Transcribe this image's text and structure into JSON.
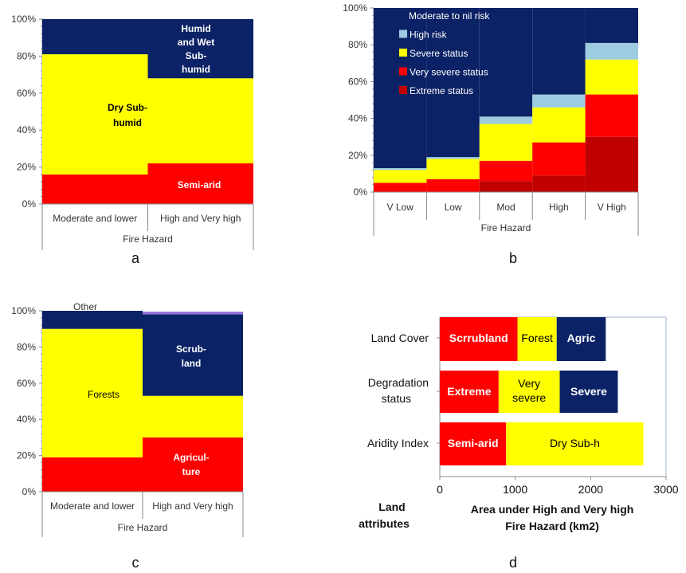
{
  "colors": {
    "navy": "#0B2266",
    "yellow": "#FFFF00",
    "red": "#FF0000",
    "darkred": "#C00000",
    "lightblue": "#9DCBE0",
    "purple": "#9370DB"
  },
  "chart_data": [
    {
      "panel": "a",
      "type": "bar",
      "stacked": true,
      "percent": true,
      "xlabel": "Fire Hazard",
      "ylabel": "",
      "ylim": [
        0,
        100
      ],
      "yticks": [
        "0%",
        "20%",
        "40%",
        "60%",
        "80%",
        "100%"
      ],
      "categories": [
        "Moderate and lower",
        "High and Very high"
      ],
      "series": [
        {
          "name": "Semi-arid",
          "values": [
            16,
            22
          ]
        },
        {
          "name": "Dry Sub-humid",
          "values": [
            65,
            46
          ]
        },
        {
          "name": "Humid and Wet Sub-humid",
          "values": [
            19,
            32
          ]
        }
      ],
      "annotations": {
        "dry": "Dry Sub-",
        "dry2": "humid",
        "semiarid": "Semi-arid",
        "humid1": "Humid",
        "humid2": "and Wet",
        "humid3": "Sub-",
        "humid4": "humid"
      }
    },
    {
      "panel": "b",
      "type": "bar",
      "stacked": true,
      "percent": true,
      "xlabel": "Fire Hazard",
      "ylabel": "",
      "ylim": [
        0,
        100
      ],
      "yticks": [
        "0%",
        "20%",
        "40%",
        "60%",
        "80%",
        "100%"
      ],
      "categories": [
        "V Low",
        "Low",
        "Mod",
        "High",
        "V High"
      ],
      "legend_position": "top-left",
      "series": [
        {
          "name": "Extreme status",
          "values": [
            0,
            0,
            6,
            9,
            30
          ]
        },
        {
          "name": "Very severe status",
          "values": [
            5,
            7,
            11,
            18,
            23
          ]
        },
        {
          "name": "Severe status",
          "values": [
            7,
            11,
            20,
            19,
            19
          ]
        },
        {
          "name": "High risk",
          "values": [
            1,
            1,
            4,
            7,
            9
          ]
        },
        {
          "name": "Moderate to nil risk",
          "values": [
            87,
            81,
            59,
            47,
            19
          ]
        }
      ]
    },
    {
      "panel": "c",
      "type": "bar",
      "stacked": true,
      "percent": true,
      "xlabel": "Fire Hazard",
      "ylabel": "",
      "ylim": [
        0,
        100
      ],
      "yticks": [
        "0%",
        "20%",
        "40%",
        "60%",
        "80%",
        "100%"
      ],
      "categories": [
        "Moderate and lower",
        "High and Very high"
      ],
      "series": [
        {
          "name": "Agriculture",
          "values": [
            19,
            30
          ]
        },
        {
          "name": "Forests",
          "values": [
            71,
            23
          ]
        },
        {
          "name": "Scrubland",
          "values": [
            10,
            45
          ]
        },
        {
          "name": "Other",
          "values": [
            0.5,
            1.5
          ]
        }
      ],
      "annotations": {
        "other": "Other",
        "forests": "Forests",
        "scrub1": "Scrub-",
        "scrub2": "land",
        "agri1": "Agricul-",
        "agri2": "ture"
      }
    },
    {
      "panel": "d",
      "type": "bar",
      "orientation": "horizontal",
      "stacked": true,
      "xlabel1": "Area under High and Very high",
      "xlabel2": "Fire Hazard (km2)",
      "ylabel1": "Land",
      "ylabel2": "attributes",
      "xlim": [
        0,
        3000
      ],
      "xticks": [
        "0",
        "1000",
        "2000",
        "3000"
      ],
      "categories": [
        {
          "label1": "Land Cover",
          "label2": ""
        },
        {
          "label1": "Degradation",
          "label2": "status"
        },
        {
          "label1": "Aridity Index",
          "label2": ""
        }
      ],
      "rows": [
        {
          "segments": [
            {
              "label": "Scrrubland",
              "value": 1030,
              "color": "red"
            },
            {
              "label": "Forest",
              "value": 520,
              "color": "yellow"
            },
            {
              "label": "Agric",
              "value": 650,
              "color": "navy"
            }
          ]
        },
        {
          "segments": [
            {
              "label": "Extreme",
              "value": 780,
              "color": "red"
            },
            {
              "label": "Very",
              "label2": "severe",
              "value": 810,
              "color": "yellow"
            },
            {
              "label": "Severe",
              "value": 770,
              "color": "navy"
            }
          ]
        },
        {
          "segments": [
            {
              "label": "Semi-arid",
              "value": 880,
              "color": "red"
            },
            {
              "label": "Dry Sub-h",
              "value": 1820,
              "color": "yellow"
            }
          ]
        }
      ]
    }
  ],
  "panel_labels": [
    "a",
    "b",
    "c",
    "d"
  ]
}
